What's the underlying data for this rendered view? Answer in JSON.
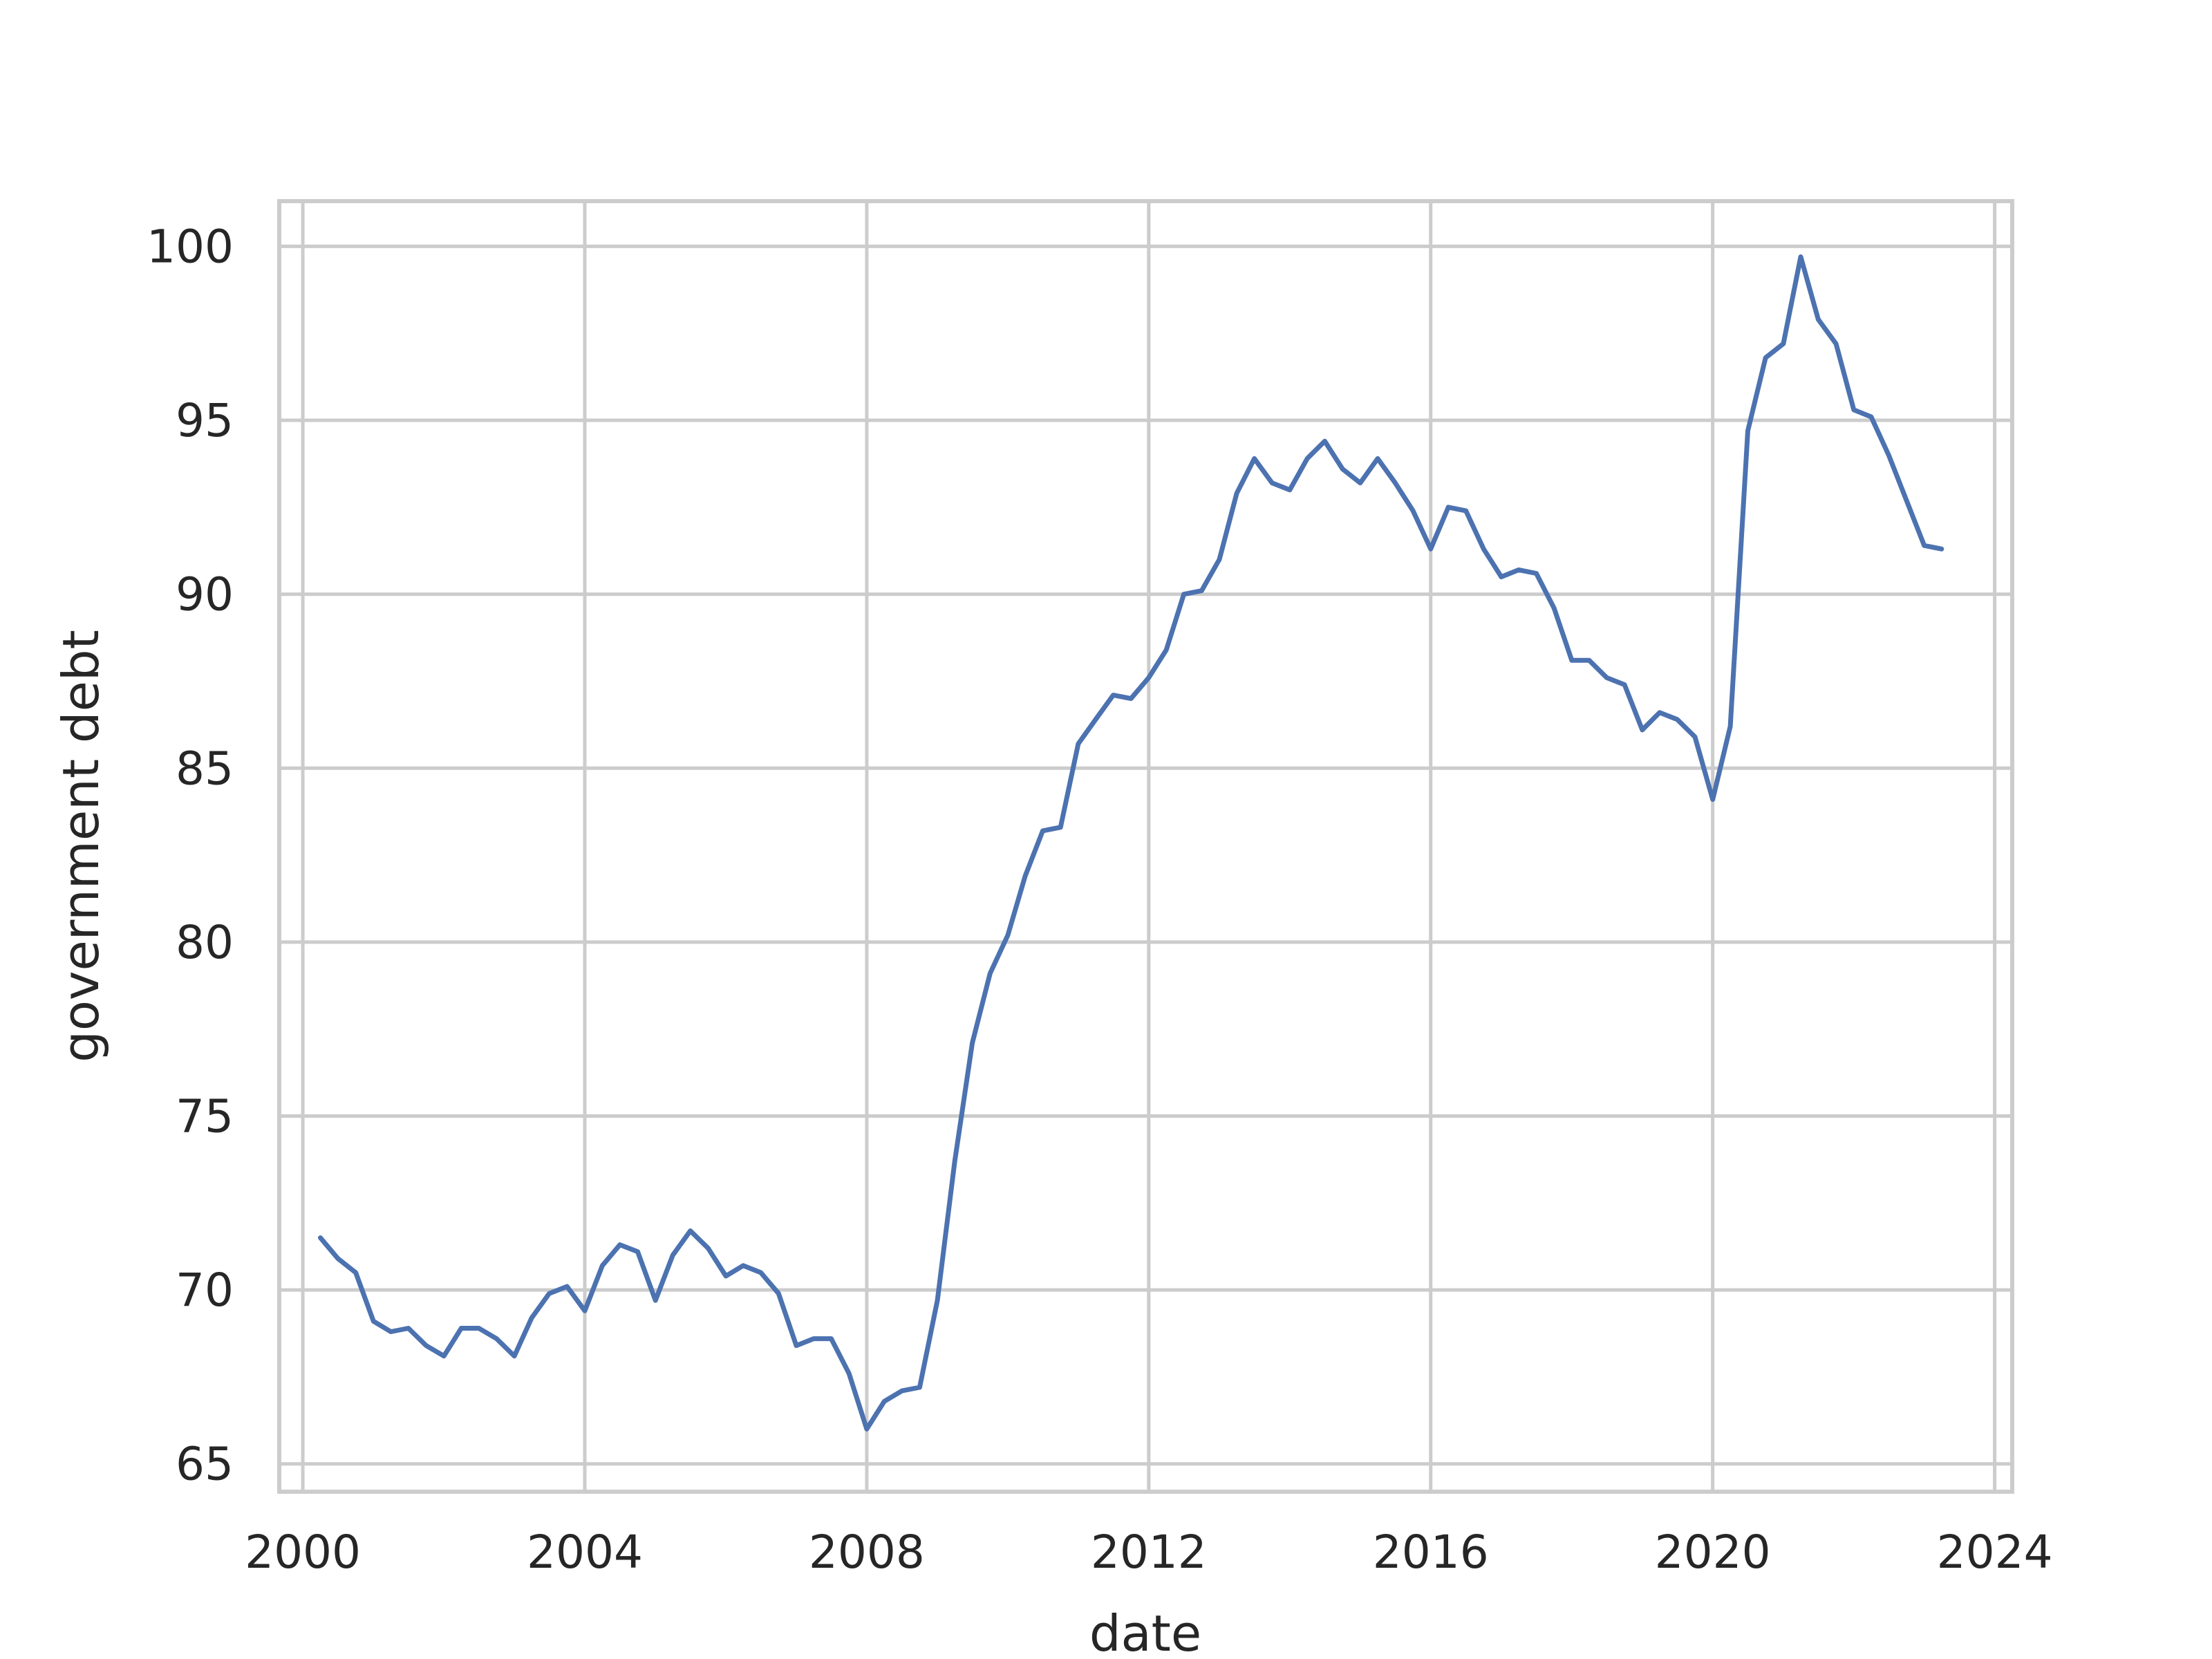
{
  "chart_data": {
    "type": "line",
    "title": "",
    "xlabel": "date",
    "ylabel": "government debt",
    "xlim": [
      "1999-09-01",
      "2024-04-01"
    ],
    "ylim": [
      64.2,
      101.3
    ],
    "xticks": [
      "2000",
      "2004",
      "2008",
      "2012",
      "2016",
      "2020",
      "2024"
    ],
    "yticks": [
      65,
      70,
      75,
      80,
      85,
      90,
      95,
      100
    ],
    "grid": true,
    "legend": "none",
    "colors": {
      "line": "#4c72b0",
      "grid": "#cccccc",
      "text": "#262626"
    },
    "series": [
      {
        "x": [
          "2000-04-01",
          "2000-07-01",
          "2000-10-01",
          "2001-01-01",
          "2001-04-01",
          "2001-07-01",
          "2001-10-01",
          "2002-01-01",
          "2002-04-01",
          "2002-07-01",
          "2002-10-01",
          "2003-01-01",
          "2003-04-01",
          "2003-07-01",
          "2003-10-01",
          "2004-01-01",
          "2004-04-01",
          "2004-07-01",
          "2004-10-01",
          "2005-01-01",
          "2005-04-01",
          "2005-07-01",
          "2005-10-01",
          "2006-01-01",
          "2006-04-01",
          "2006-07-01",
          "2006-10-01",
          "2007-01-01",
          "2007-04-01",
          "2007-07-01",
          "2007-10-01",
          "2008-01-01",
          "2008-04-01",
          "2008-07-01",
          "2008-10-01",
          "2009-01-01",
          "2009-04-01",
          "2009-07-01",
          "2009-10-01",
          "2010-01-01",
          "2010-04-01",
          "2010-07-01",
          "2010-10-01",
          "2011-01-01",
          "2011-04-01",
          "2011-07-01",
          "2011-10-01",
          "2012-01-01",
          "2012-04-01",
          "2012-07-01",
          "2012-10-01",
          "2013-01-01",
          "2013-04-01",
          "2013-07-01",
          "2013-10-01",
          "2014-01-01",
          "2014-04-01",
          "2014-07-01",
          "2014-10-01",
          "2015-01-01",
          "2015-04-01",
          "2015-07-01",
          "2015-10-01",
          "2016-01-01",
          "2016-04-01",
          "2016-07-01",
          "2016-10-01",
          "2017-01-01",
          "2017-04-01",
          "2017-07-01",
          "2017-10-01",
          "2018-01-01",
          "2018-04-01",
          "2018-07-01",
          "2018-10-01",
          "2019-01-01",
          "2019-04-01",
          "2019-07-01",
          "2019-10-01",
          "2020-01-01",
          "2020-04-01",
          "2020-07-01",
          "2020-10-01",
          "2021-01-01",
          "2021-04-01",
          "2021-07-01",
          "2021-10-01",
          "2022-01-01",
          "2022-04-01",
          "2022-07-01",
          "2022-10-01",
          "2023-01-01",
          "2023-04-01"
        ],
        "y": [
          71.5,
          70.9,
          70.5,
          69.1,
          68.8,
          68.9,
          68.4,
          68.1,
          68.9,
          68.9,
          68.6,
          68.1,
          69.2,
          69.9,
          70.1,
          69.4,
          70.7,
          71.3,
          71.1,
          69.7,
          71.0,
          71.7,
          71.2,
          70.4,
          70.7,
          70.5,
          69.9,
          68.4,
          68.6,
          68.6,
          67.6,
          66.0,
          66.8,
          67.1,
          67.2,
          69.7,
          73.7,
          77.1,
          79.1,
          80.2,
          81.9,
          83.2,
          83.3,
          85.7,
          86.4,
          87.1,
          87.0,
          87.6,
          88.4,
          90.0,
          90.1,
          91.0,
          92.9,
          93.9,
          93.2,
          93.0,
          93.9,
          94.4,
          93.6,
          93.2,
          93.9,
          93.2,
          92.4,
          91.3,
          92.5,
          92.4,
          91.3,
          90.5,
          90.7,
          90.6,
          89.6,
          88.1,
          88.1,
          87.6,
          87.4,
          86.1,
          86.6,
          86.4,
          85.9,
          84.1,
          86.2,
          94.7,
          96.8,
          97.2,
          99.7,
          97.9,
          97.2,
          95.3,
          95.1,
          94.0,
          92.7,
          91.4,
          91.3
        ]
      }
    ]
  }
}
